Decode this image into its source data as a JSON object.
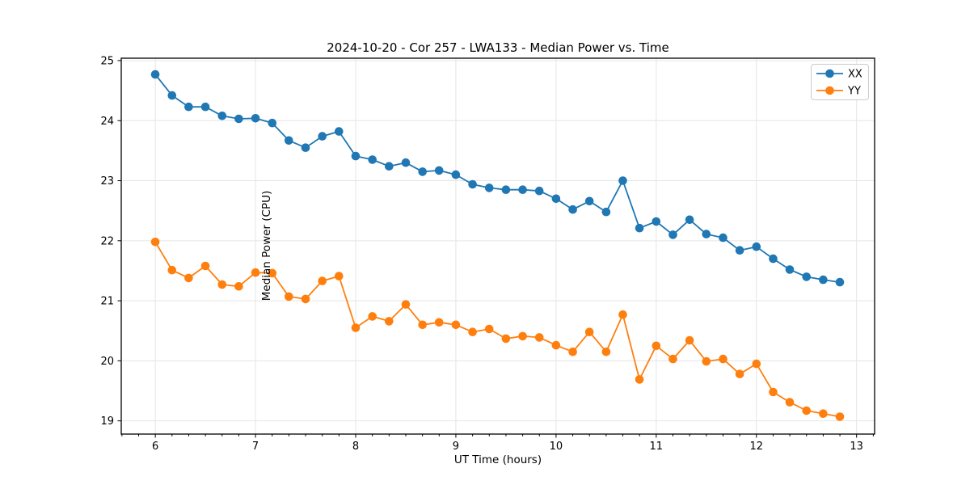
{
  "chart_data": {
    "type": "line",
    "title": "2024-10-20 - Cor 257 - LWA133 - Median Power vs. Time",
    "xlabel": "UT Time (hours)",
    "ylabel": "Median Power (CPU)",
    "xlim": [
      5.66,
      13.18
    ],
    "ylim": [
      18.78,
      25.04
    ],
    "x_ticks": [
      6,
      7,
      8,
      9,
      10,
      11,
      12,
      13
    ],
    "y_ticks": [
      19,
      20,
      21,
      22,
      23,
      24,
      25
    ],
    "x_minor_tick_step": 0.16667,
    "grid": true,
    "grid_color": "#e5e5e5",
    "legend": {
      "position": "upper right",
      "entries": [
        "XX",
        "YY"
      ]
    },
    "x": [
      6.0,
      6.167,
      6.333,
      6.5,
      6.667,
      6.833,
      7.0,
      7.167,
      7.333,
      7.5,
      7.667,
      7.833,
      8.0,
      8.167,
      8.333,
      8.5,
      8.667,
      8.833,
      9.0,
      9.167,
      9.333,
      9.5,
      9.667,
      9.833,
      10.0,
      10.167,
      10.333,
      10.5,
      10.667,
      10.833,
      11.0,
      11.167,
      11.333,
      11.5,
      11.667,
      11.833,
      12.0,
      12.167,
      12.333,
      12.5,
      12.667,
      12.833
    ],
    "series": [
      {
        "name": "XX",
        "color": "#1f77b4",
        "values": [
          24.77,
          24.42,
          24.23,
          24.23,
          24.08,
          24.03,
          24.04,
          23.96,
          23.67,
          23.55,
          23.74,
          23.82,
          23.41,
          23.35,
          23.24,
          23.3,
          23.15,
          23.17,
          23.1,
          22.94,
          22.88,
          22.85,
          22.85,
          22.83,
          22.7,
          22.52,
          22.66,
          22.48,
          23.0,
          22.21,
          22.32,
          22.1,
          22.35,
          22.11,
          22.05,
          21.84,
          21.9,
          21.7,
          21.52,
          21.4,
          21.35,
          21.31
        ]
      },
      {
        "name": "YY",
        "color": "#ff7f0e",
        "values": [
          21.98,
          21.51,
          21.38,
          21.58,
          21.27,
          21.24,
          21.47,
          21.46,
          21.07,
          21.03,
          21.33,
          21.41,
          20.55,
          20.74,
          20.66,
          20.94,
          20.6,
          20.64,
          20.6,
          20.48,
          20.53,
          20.37,
          20.41,
          20.39,
          20.26,
          20.15,
          20.48,
          20.15,
          20.77,
          19.69,
          20.25,
          20.03,
          20.34,
          19.99,
          20.03,
          19.78,
          19.95,
          19.48,
          19.31,
          19.17,
          19.12,
          19.07
        ]
      }
    ]
  }
}
